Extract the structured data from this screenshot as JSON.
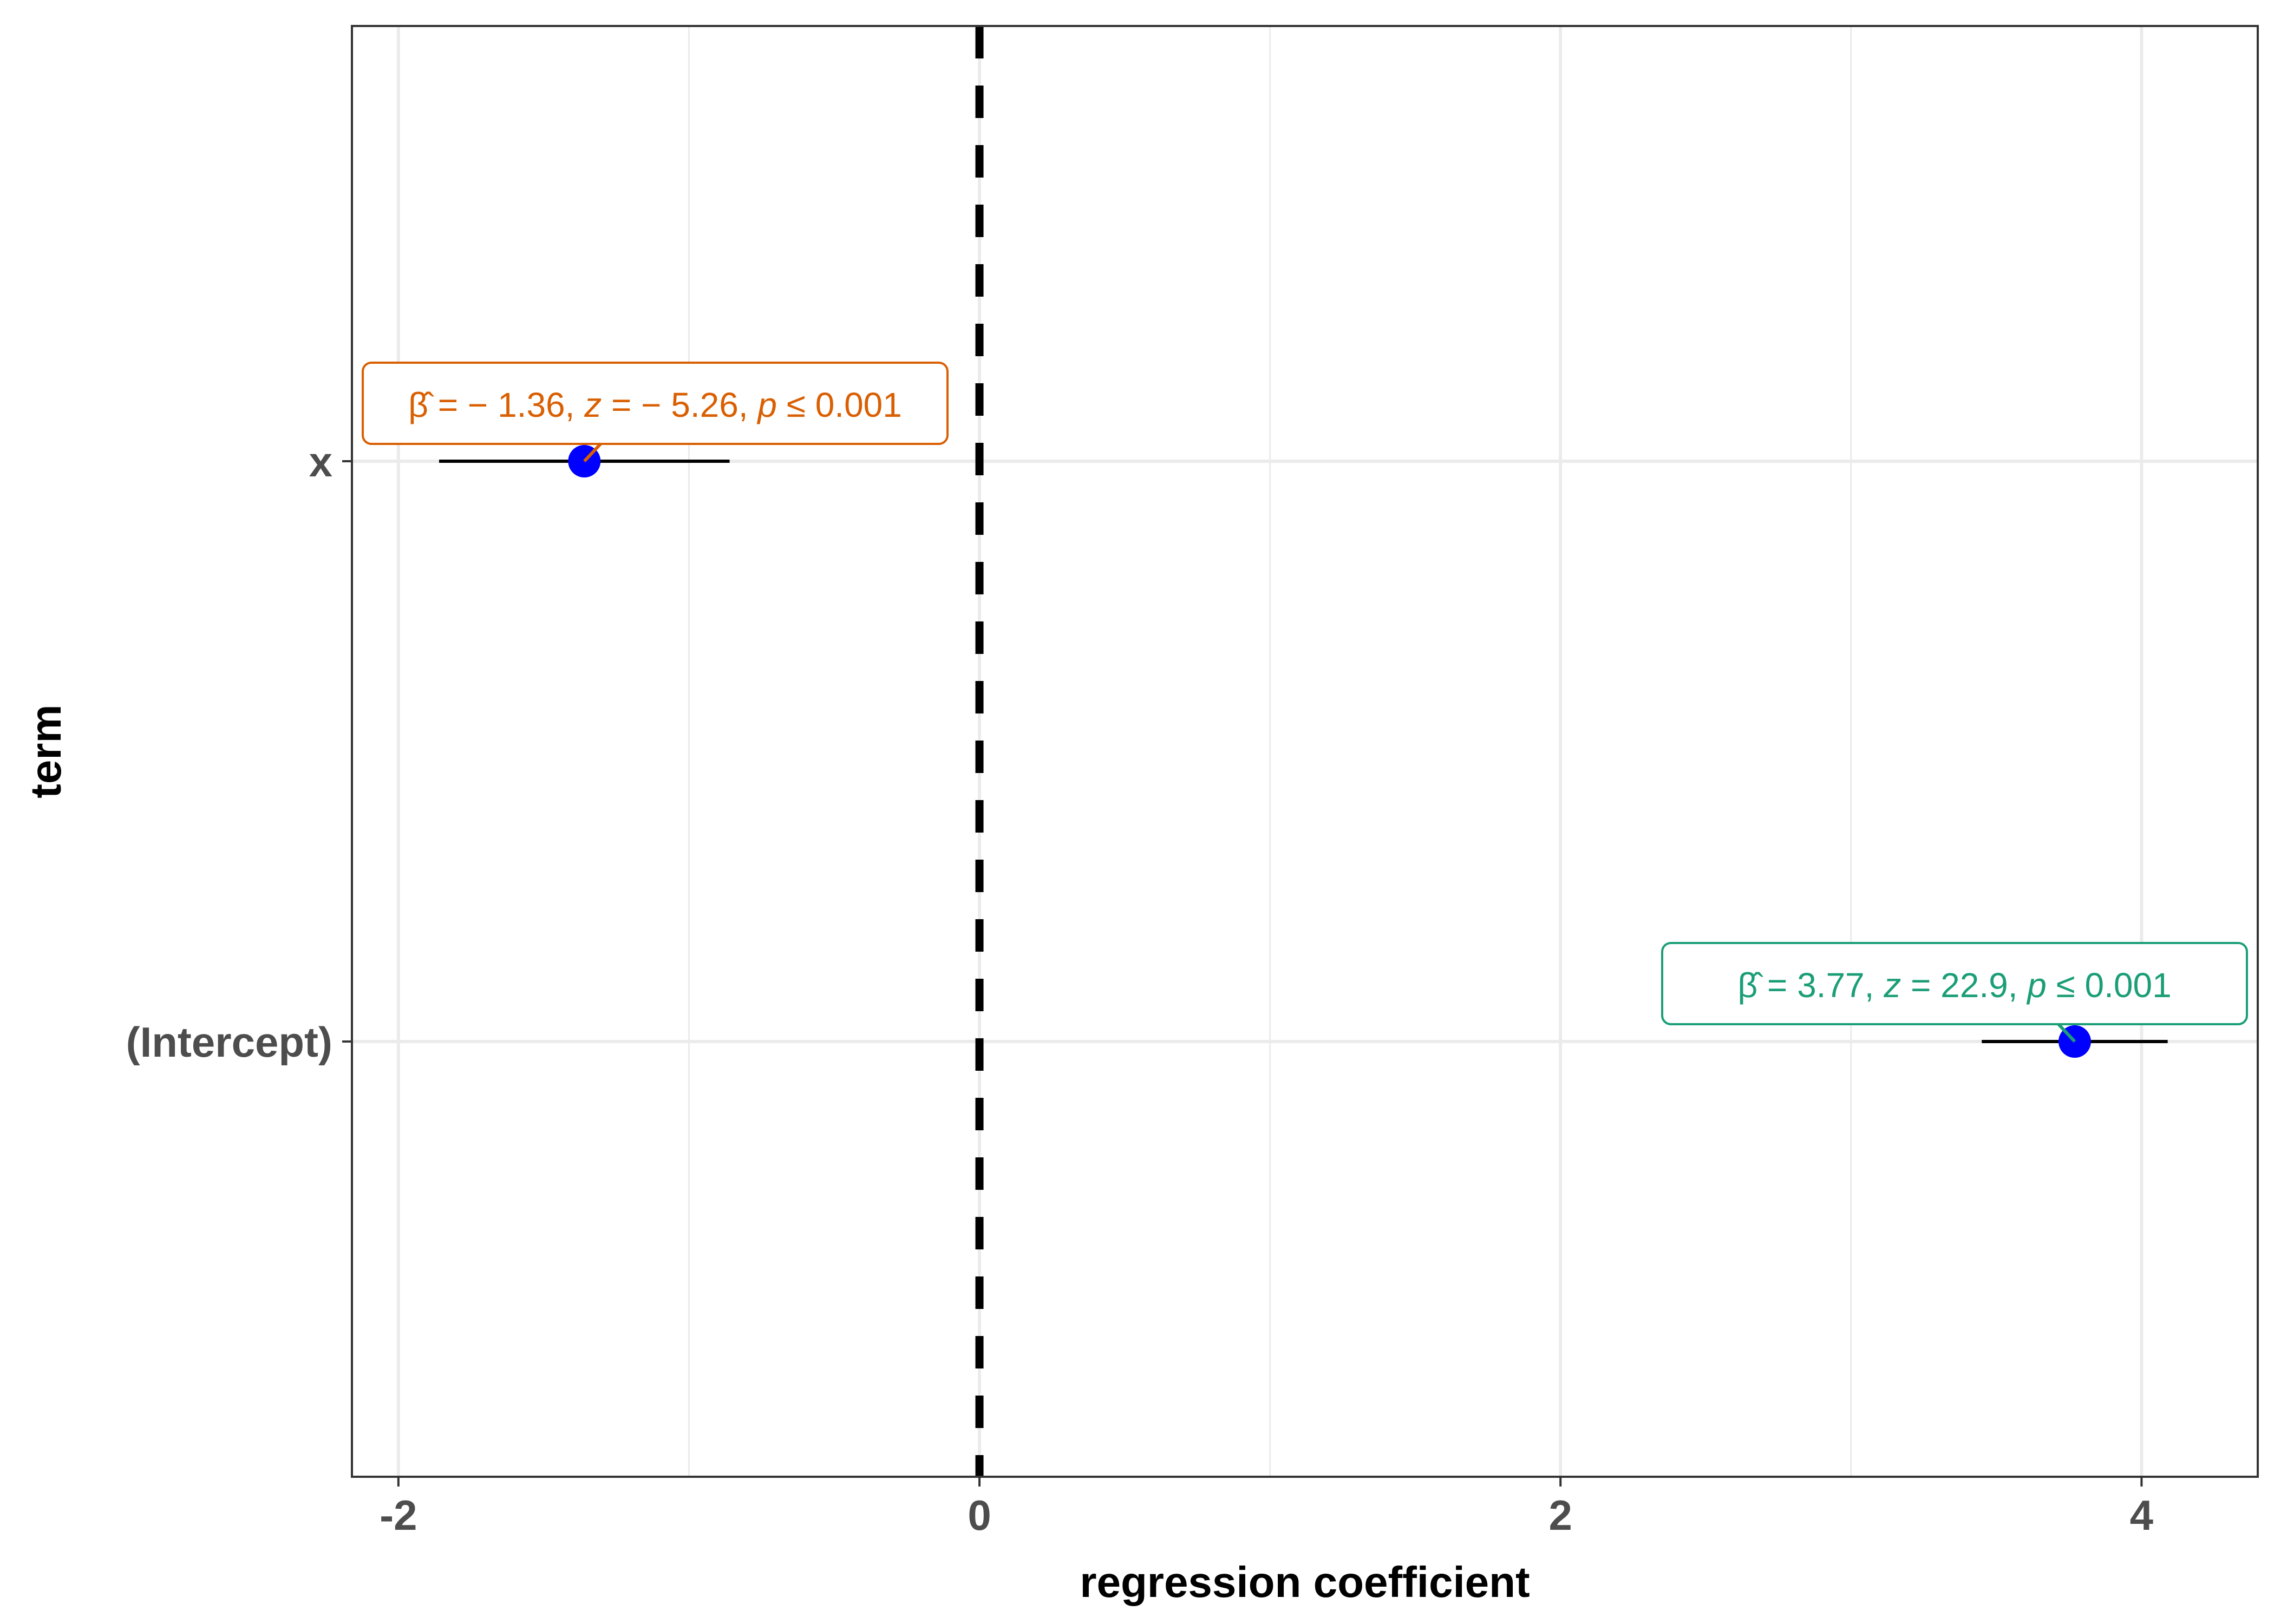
{
  "chart_data": {
    "type": "scatter",
    "xlabel": "regression coefficient",
    "ylabel": "term",
    "xlim": [
      -2.16,
      4.4
    ],
    "x_ticks": [
      {
        "value": -2,
        "label": "-2"
      },
      {
        "value": 0,
        "label": "0"
      },
      {
        "value": 2,
        "label": "2"
      },
      {
        "value": 4,
        "label": "4"
      }
    ],
    "x_minor_gridlines": [
      -1,
      1,
      3
    ],
    "categories": [
      "x",
      "(Intercept)"
    ],
    "reference_line": {
      "x": 0,
      "style": "dashed"
    },
    "grid": true,
    "point_color": "#0000ff",
    "terms": [
      {
        "term": "x",
        "estimate": -1.36,
        "conf_low": -1.86,
        "conf_high": -0.86,
        "label": {
          "beta": "− 1.36",
          "z": "− 5.26",
          "p": "≤ 0.001"
        },
        "label_color": "#d95f02"
      },
      {
        "term": "(Intercept)",
        "estimate": 3.77,
        "conf_low": 3.45,
        "conf_high": 4.09,
        "label": {
          "beta": "3.77",
          "z": "22.9",
          "p": "≤ 0.001"
        },
        "label_color": "#1b9e77"
      }
    ]
  }
}
